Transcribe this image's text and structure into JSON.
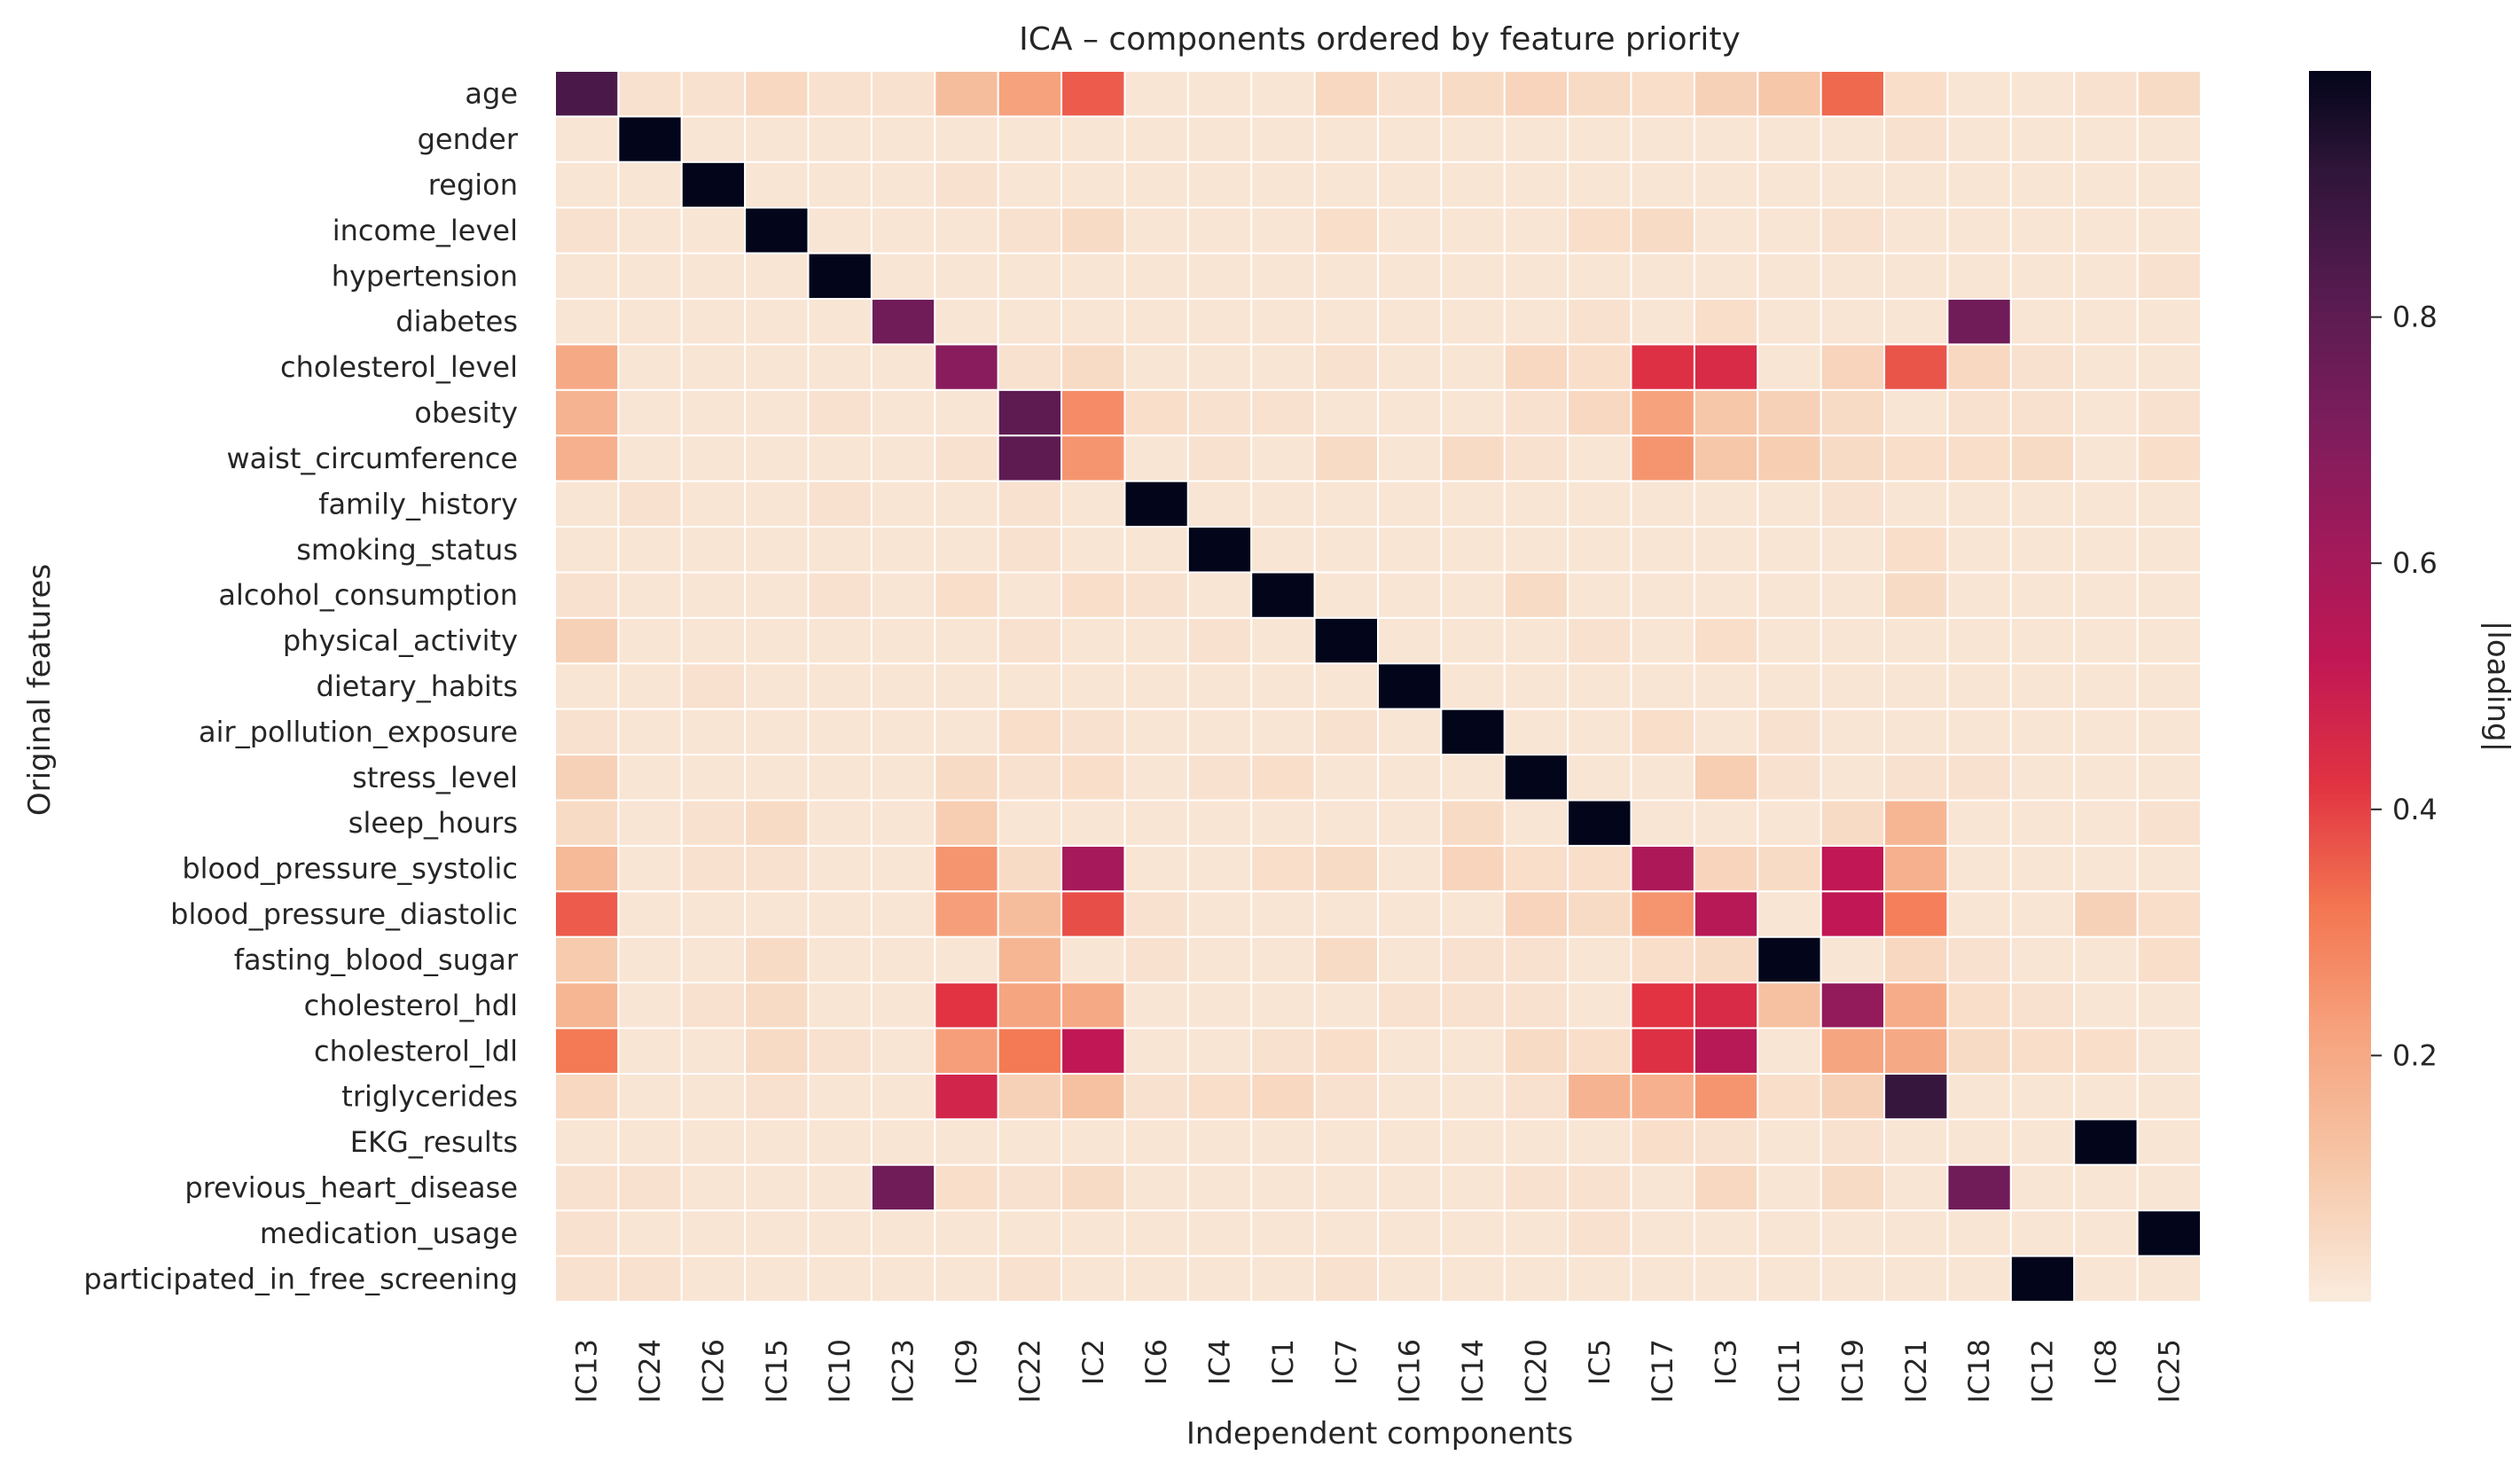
{
  "chart_data": {
    "type": "heatmap",
    "title": "ICA – components ordered by feature priority",
    "xlabel": "Independent components",
    "ylabel": "Original features",
    "colorbar_label": "|loading|",
    "colormap": "rocket_r",
    "vmin": 0.0,
    "vmax": 1.0,
    "colorbar_ticks": [
      0.2,
      0.4,
      0.6,
      0.8
    ],
    "colorbar_tick_labels": [
      "0.2",
      "0.4",
      "0.6",
      "0.8"
    ],
    "grid_color": "#ffffff",
    "columns": [
      "IC13",
      "IC24",
      "IC26",
      "IC15",
      "IC10",
      "IC23",
      "IC9",
      "IC22",
      "IC2",
      "IC6",
      "IC4",
      "IC1",
      "IC7",
      "IC16",
      "IC14",
      "IC20",
      "IC5",
      "IC17",
      "IC3",
      "IC11",
      "IC19",
      "IC21",
      "IC18",
      "IC12",
      "IC8",
      "IC25"
    ],
    "rows": [
      "age",
      "gender",
      "region",
      "income_level",
      "hypertension",
      "diabetes",
      "cholesterol_level",
      "obesity",
      "waist_circumference",
      "family_history",
      "smoking_status",
      "alcohol_consumption",
      "physical_activity",
      "dietary_habits",
      "air_pollution_exposure",
      "stress_level",
      "sleep_hours",
      "blood_pressure_systolic",
      "blood_pressure_diastolic",
      "fasting_blood_sugar",
      "cholesterol_hdl",
      "cholesterol_ldl",
      "triglycerides",
      "EKG_results",
      "previous_heart_disease",
      "medication_usage",
      "participated_in_free_screening"
    ],
    "values": [
      [
        0.85,
        0.03,
        0.03,
        0.06,
        0.03,
        0.03,
        0.14,
        0.22,
        0.36,
        0.02,
        0.02,
        0.02,
        0.06,
        0.03,
        0.05,
        0.07,
        0.05,
        0.04,
        0.08,
        0.11,
        0.34,
        0.04,
        0.02,
        0.02,
        0.03,
        0.05
      ],
      [
        0.02,
        1.0,
        0.02,
        0.02,
        0.02,
        0.02,
        0.02,
        0.02,
        0.02,
        0.02,
        0.02,
        0.02,
        0.02,
        0.02,
        0.02,
        0.02,
        0.02,
        0.02,
        0.02,
        0.02,
        0.02,
        0.03,
        0.02,
        0.02,
        0.02,
        0.02
      ],
      [
        0.02,
        0.02,
        1.0,
        0.02,
        0.02,
        0.02,
        0.03,
        0.02,
        0.02,
        0.02,
        0.02,
        0.02,
        0.02,
        0.02,
        0.02,
        0.02,
        0.02,
        0.02,
        0.02,
        0.02,
        0.02,
        0.02,
        0.02,
        0.02,
        0.02,
        0.02
      ],
      [
        0.03,
        0.02,
        0.02,
        1.0,
        0.02,
        0.02,
        0.02,
        0.03,
        0.05,
        0.02,
        0.02,
        0.02,
        0.04,
        0.02,
        0.02,
        0.02,
        0.04,
        0.05,
        0.02,
        0.02,
        0.03,
        0.02,
        0.02,
        0.02,
        0.02,
        0.02
      ],
      [
        0.02,
        0.02,
        0.02,
        0.02,
        1.0,
        0.02,
        0.02,
        0.02,
        0.02,
        0.02,
        0.02,
        0.02,
        0.02,
        0.02,
        0.02,
        0.02,
        0.02,
        0.02,
        0.02,
        0.02,
        0.02,
        0.02,
        0.02,
        0.02,
        0.02,
        0.03
      ],
      [
        0.02,
        0.02,
        0.02,
        0.02,
        0.02,
        0.75,
        0.02,
        0.02,
        0.02,
        0.02,
        0.02,
        0.02,
        0.02,
        0.02,
        0.02,
        0.02,
        0.03,
        0.02,
        0.04,
        0.02,
        0.02,
        0.02,
        0.75,
        0.02,
        0.02,
        0.02
      ],
      [
        0.2,
        0.02,
        0.02,
        0.02,
        0.02,
        0.02,
        0.68,
        0.03,
        0.05,
        0.02,
        0.02,
        0.02,
        0.03,
        0.02,
        0.02,
        0.06,
        0.04,
        0.43,
        0.45,
        0.02,
        0.07,
        0.37,
        0.06,
        0.03,
        0.02,
        0.02
      ],
      [
        0.17,
        0.02,
        0.02,
        0.02,
        0.03,
        0.02,
        0.02,
        0.8,
        0.27,
        0.04,
        0.03,
        0.03,
        0.02,
        0.02,
        0.02,
        0.03,
        0.06,
        0.22,
        0.11,
        0.08,
        0.05,
        0.02,
        0.03,
        0.03,
        0.02,
        0.03
      ],
      [
        0.18,
        0.02,
        0.02,
        0.02,
        0.02,
        0.02,
        0.03,
        0.8,
        0.25,
        0.02,
        0.03,
        0.02,
        0.05,
        0.02,
        0.05,
        0.03,
        0.02,
        0.25,
        0.11,
        0.09,
        0.05,
        0.04,
        0.04,
        0.05,
        0.02,
        0.04
      ],
      [
        0.02,
        0.03,
        0.02,
        0.02,
        0.03,
        0.02,
        0.02,
        0.03,
        0.02,
        1.0,
        0.02,
        0.02,
        0.02,
        0.02,
        0.02,
        0.02,
        0.02,
        0.02,
        0.02,
        0.02,
        0.03,
        0.02,
        0.02,
        0.02,
        0.02,
        0.02
      ],
      [
        0.02,
        0.02,
        0.02,
        0.02,
        0.02,
        0.02,
        0.02,
        0.03,
        0.02,
        0.02,
        1.0,
        0.02,
        0.02,
        0.02,
        0.02,
        0.02,
        0.02,
        0.02,
        0.02,
        0.02,
        0.02,
        0.04,
        0.02,
        0.02,
        0.02,
        0.02
      ],
      [
        0.03,
        0.02,
        0.02,
        0.02,
        0.03,
        0.02,
        0.04,
        0.02,
        0.04,
        0.03,
        0.02,
        1.0,
        0.02,
        0.02,
        0.02,
        0.05,
        0.02,
        0.02,
        0.02,
        0.02,
        0.02,
        0.05,
        0.02,
        0.02,
        0.02,
        0.02
      ],
      [
        0.08,
        0.02,
        0.02,
        0.02,
        0.02,
        0.02,
        0.02,
        0.03,
        0.02,
        0.02,
        0.03,
        0.02,
        1.0,
        0.02,
        0.02,
        0.02,
        0.03,
        0.02,
        0.04,
        0.02,
        0.02,
        0.02,
        0.02,
        0.02,
        0.02,
        0.02
      ],
      [
        0.02,
        0.02,
        0.03,
        0.02,
        0.02,
        0.02,
        0.02,
        0.02,
        0.02,
        0.02,
        0.02,
        0.02,
        0.02,
        1.0,
        0.02,
        0.02,
        0.02,
        0.02,
        0.02,
        0.02,
        0.02,
        0.02,
        0.02,
        0.02,
        0.02,
        0.02
      ],
      [
        0.03,
        0.02,
        0.02,
        0.02,
        0.02,
        0.02,
        0.02,
        0.04,
        0.03,
        0.02,
        0.02,
        0.02,
        0.03,
        0.02,
        1.0,
        0.02,
        0.02,
        0.04,
        0.02,
        0.03,
        0.02,
        0.02,
        0.02,
        0.02,
        0.02,
        0.02
      ],
      [
        0.08,
        0.02,
        0.02,
        0.02,
        0.02,
        0.02,
        0.05,
        0.03,
        0.04,
        0.02,
        0.03,
        0.04,
        0.02,
        0.02,
        0.02,
        1.0,
        0.02,
        0.02,
        0.09,
        0.03,
        0.02,
        0.03,
        0.03,
        0.02,
        0.02,
        0.02
      ],
      [
        0.05,
        0.02,
        0.03,
        0.05,
        0.02,
        0.02,
        0.09,
        0.02,
        0.02,
        0.02,
        0.02,
        0.02,
        0.02,
        0.02,
        0.05,
        0.02,
        1.0,
        0.02,
        0.02,
        0.02,
        0.05,
        0.16,
        0.02,
        0.02,
        0.02,
        0.03
      ],
      [
        0.15,
        0.02,
        0.03,
        0.03,
        0.02,
        0.02,
        0.25,
        0.05,
        0.6,
        0.02,
        0.02,
        0.04,
        0.05,
        0.02,
        0.07,
        0.04,
        0.04,
        0.58,
        0.07,
        0.05,
        0.52,
        0.18,
        0.02,
        0.02,
        0.02,
        0.02
      ],
      [
        0.36,
        0.02,
        0.02,
        0.02,
        0.02,
        0.02,
        0.23,
        0.14,
        0.38,
        0.03,
        0.02,
        0.02,
        0.02,
        0.02,
        0.02,
        0.07,
        0.05,
        0.25,
        0.55,
        0.02,
        0.52,
        0.3,
        0.02,
        0.02,
        0.08,
        0.04
      ],
      [
        0.1,
        0.02,
        0.02,
        0.05,
        0.02,
        0.02,
        0.02,
        0.16,
        0.02,
        0.03,
        0.02,
        0.02,
        0.05,
        0.02,
        0.03,
        0.03,
        0.02,
        0.04,
        0.05,
        1.0,
        0.02,
        0.06,
        0.03,
        0.02,
        0.02,
        0.04
      ],
      [
        0.16,
        0.02,
        0.03,
        0.05,
        0.02,
        0.02,
        0.42,
        0.21,
        0.2,
        0.02,
        0.02,
        0.02,
        0.02,
        0.03,
        0.03,
        0.03,
        0.02,
        0.42,
        0.45,
        0.13,
        0.65,
        0.19,
        0.04,
        0.03,
        0.02,
        0.02
      ],
      [
        0.31,
        0.02,
        0.02,
        0.05,
        0.03,
        0.02,
        0.23,
        0.31,
        0.52,
        0.02,
        0.02,
        0.03,
        0.04,
        0.02,
        0.02,
        0.05,
        0.04,
        0.43,
        0.55,
        0.02,
        0.21,
        0.2,
        0.05,
        0.04,
        0.04,
        0.02
      ],
      [
        0.06,
        0.02,
        0.02,
        0.03,
        0.02,
        0.02,
        0.47,
        0.08,
        0.13,
        0.03,
        0.04,
        0.06,
        0.03,
        0.02,
        0.02,
        0.03,
        0.17,
        0.18,
        0.25,
        0.04,
        0.08,
        0.9,
        0.02,
        0.02,
        0.02,
        0.02
      ],
      [
        0.02,
        0.02,
        0.02,
        0.02,
        0.02,
        0.02,
        0.02,
        0.02,
        0.02,
        0.02,
        0.02,
        0.02,
        0.02,
        0.02,
        0.02,
        0.02,
        0.02,
        0.04,
        0.03,
        0.02,
        0.03,
        0.02,
        0.02,
        0.02,
        1.0,
        0.02
      ],
      [
        0.03,
        0.03,
        0.02,
        0.02,
        0.02,
        0.75,
        0.04,
        0.03,
        0.05,
        0.02,
        0.02,
        0.02,
        0.02,
        0.02,
        0.02,
        0.03,
        0.03,
        0.02,
        0.06,
        0.02,
        0.05,
        0.02,
        0.75,
        0.02,
        0.02,
        0.02
      ],
      [
        0.03,
        0.02,
        0.02,
        0.02,
        0.02,
        0.02,
        0.02,
        0.02,
        0.02,
        0.02,
        0.02,
        0.02,
        0.02,
        0.02,
        0.02,
        0.02,
        0.03,
        0.02,
        0.02,
        0.02,
        0.02,
        0.02,
        0.02,
        0.02,
        0.02,
        1.0
      ],
      [
        0.03,
        0.03,
        0.02,
        0.02,
        0.02,
        0.02,
        0.02,
        0.03,
        0.02,
        0.02,
        0.02,
        0.02,
        0.03,
        0.02,
        0.02,
        0.02,
        0.02,
        0.02,
        0.02,
        0.02,
        0.02,
        0.02,
        0.02,
        1.0,
        0.02,
        0.02
      ]
    ]
  }
}
